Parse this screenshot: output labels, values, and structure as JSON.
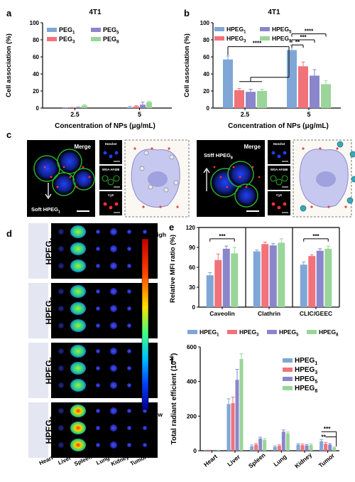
{
  "panel_letters": {
    "a": "a",
    "b": "b",
    "c": "c",
    "d": "d",
    "e": "e",
    "f": "f"
  },
  "colors": {
    "g1": "#7fa6d6",
    "g3": "#f2727a",
    "g5": "#8a86cc",
    "g8": "#9ad59a"
  },
  "chart_data": [
    {
      "panel": "a",
      "type": "bar",
      "title": "4T1",
      "ylabel": "Cell association (%)",
      "xlabel": "Concentration of NPs (μg/mL)",
      "ylim": [
        0,
        100
      ],
      "yticks": [
        0,
        20,
        40,
        60,
        80,
        100
      ],
      "categories": [
        "2.5",
        "5"
      ],
      "series": [
        {
          "name": "PEG",
          "sub": "1",
          "values": [
            0.3,
            1.0
          ],
          "err": [
            0.2,
            1.0
          ]
        },
        {
          "name": "PEG",
          "sub": "3",
          "values": [
            0.5,
            2.0
          ],
          "err": [
            0.3,
            1.0
          ]
        },
        {
          "name": "PEG",
          "sub": "5",
          "values": [
            0.8,
            4.0
          ],
          "err": [
            0.4,
            3.0
          ]
        },
        {
          "name": "PEG",
          "sub": "8",
          "values": [
            3.0,
            7.0
          ],
          "err": [
            0.8,
            1.0
          ]
        }
      ]
    },
    {
      "panel": "b",
      "type": "bar",
      "title": "4T1",
      "ylabel": "Cell association (%)",
      "xlabel": "Concentration of NPs (μg/mL)",
      "ylim": [
        0,
        100
      ],
      "yticks": [
        0,
        20,
        40,
        60,
        80,
        100
      ],
      "categories": [
        "2.5",
        "5"
      ],
      "series": [
        {
          "name": "HPEG",
          "sub": "1",
          "values": [
            57,
            68
          ],
          "err": [
            4,
            6
          ]
        },
        {
          "name": "HPEG",
          "sub": "3",
          "values": [
            21,
            49
          ],
          "err": [
            2,
            5
          ]
        },
        {
          "name": "HPEG",
          "sub": "5",
          "values": [
            19,
            38
          ],
          "err": [
            3,
            7
          ]
        },
        {
          "name": "HPEG",
          "sub": "8",
          "values": [
            20,
            28
          ],
          "err": [
            2,
            4
          ]
        }
      ],
      "annotations": [
        "****",
        "****",
        "**",
        "***"
      ]
    },
    {
      "panel": "e",
      "type": "bar",
      "ylabel": "Relative MFI ratio (%)",
      "ylim": [
        0,
        120
      ],
      "yticks": [
        0,
        30,
        60,
        90,
        120
      ],
      "categories": [
        "Caveolin",
        "Clathrin",
        "CLIC/GEEC"
      ],
      "series": [
        {
          "name": "HPEG",
          "sub": "1",
          "values": [
            48,
            84,
            64
          ],
          "err": [
            4,
            2,
            4
          ]
        },
        {
          "name": "HPEG",
          "sub": "3",
          "values": [
            71,
            95,
            77
          ],
          "err": [
            9,
            3,
            2
          ]
        },
        {
          "name": "HPEG",
          "sub": "5",
          "values": [
            88,
            93,
            85
          ],
          "err": [
            4,
            3,
            3
          ]
        },
        {
          "name": "HPEG",
          "sub": "8",
          "values": [
            81,
            97,
            88
          ],
          "err": [
            9,
            6,
            4
          ]
        }
      ],
      "annotations": [
        "***",
        "***"
      ]
    },
    {
      "panel": "f",
      "type": "bar",
      "ylabel": "Total radiant efficient (10",
      "ylabel_sup": "16",
      "ylabel_tail": ")",
      "ylim": [
        0,
        600
      ],
      "yticks": [
        0,
        200,
        400,
        600
      ],
      "categories": [
        "Heart",
        "Liver",
        "Spleen",
        "Lung",
        "Kidney",
        "Tumor"
      ],
      "series": [
        {
          "name": "HPEG",
          "sub": "1",
          "values": [
            2,
            270,
            25,
            22,
            35,
            55
          ],
          "err": [
            1,
            30,
            8,
            6,
            6,
            10
          ]
        },
        {
          "name": "HPEG",
          "sub": "3",
          "values": [
            2,
            275,
            35,
            28,
            32,
            40
          ],
          "err": [
            1,
            35,
            6,
            6,
            6,
            8
          ]
        },
        {
          "name": "HPEG",
          "sub": "5",
          "values": [
            2,
            410,
            70,
            110,
            30,
            35
          ],
          "err": [
            1,
            60,
            8,
            10,
            6,
            6
          ]
        },
        {
          "name": "HPEG",
          "sub": "8",
          "values": [
            2,
            530,
            62,
            100,
            33,
            18
          ],
          "err": [
            1,
            30,
            8,
            8,
            6,
            4
          ]
        }
      ],
      "annotations": [
        "***",
        "**"
      ]
    }
  ],
  "panel_c": {
    "left_merge": "Merge",
    "left_label": "Soft HPEG",
    "left_sub": "1",
    "right_merge": "Merge",
    "right_label": "Stiff HPEG",
    "right_sub": "8",
    "channels": [
      "Hoechst",
      "WGA-AF488",
      "Cy5"
    ]
  },
  "panel_d": {
    "groups": [
      {
        "name": "HPEG",
        "sub": "1"
      },
      {
        "name": "HPEG",
        "sub": "3"
      },
      {
        "name": "HPEG",
        "sub": "5"
      },
      {
        "name": "HPEG",
        "sub": "8"
      }
    ],
    "organs": [
      "Heart",
      "Liver",
      "Spleen",
      "Lung",
      "Kidney",
      "Tumor"
    ],
    "scale_high": "High",
    "scale_low": "Low"
  }
}
